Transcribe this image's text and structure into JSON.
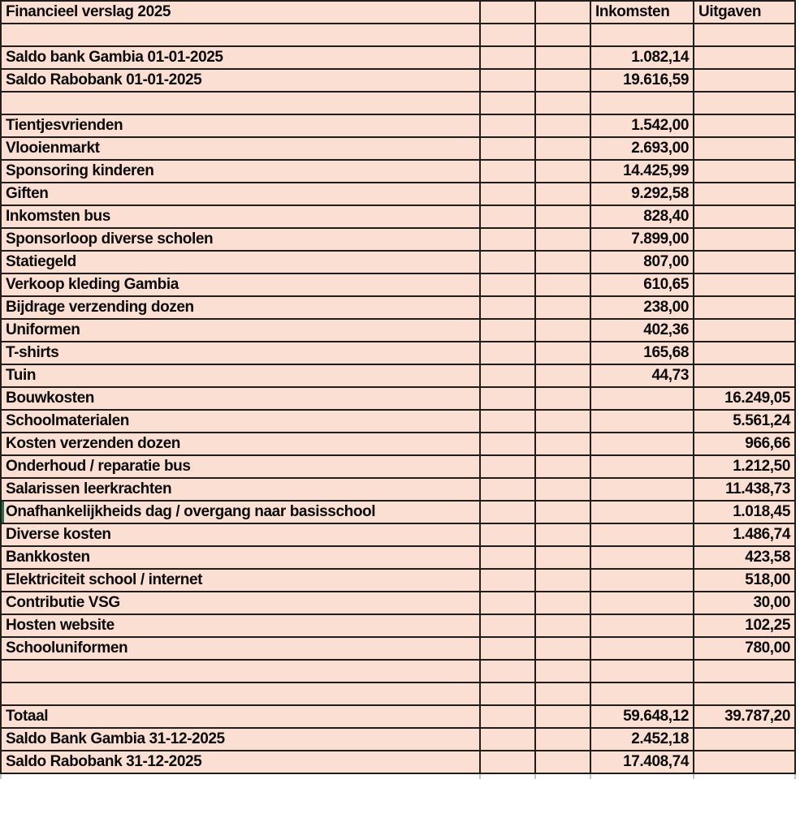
{
  "colors": {
    "cell_fill": "#fcdfd3",
    "grid_line": "#211d1c",
    "selection_green": "#217346",
    "text": "#0b0a0a"
  },
  "table": {
    "title": "Financieel verslag 2025",
    "columns": {
      "inkomsten": "Inkomsten",
      "uitgaven": "Uitgaven"
    },
    "rows": [
      {
        "label": ""
      },
      {
        "label": "Saldo bank Gambia 01-01-2025",
        "inkomsten": "1.082,14"
      },
      {
        "label": "Saldo Rabobank 01-01-2025",
        "inkomsten": "19.616,59"
      },
      {
        "label": ""
      },
      {
        "label": "Tientjesvrienden",
        "inkomsten": "1.542,00"
      },
      {
        "label": "Vlooienmarkt",
        "inkomsten": "2.693,00"
      },
      {
        "label": "Sponsoring kinderen",
        "inkomsten": "14.425,99"
      },
      {
        "label": "Giften",
        "inkomsten": "9.292,58"
      },
      {
        "label": "Inkomsten bus",
        "inkomsten": "828,40"
      },
      {
        "label": "Sponsorloop diverse scholen",
        "inkomsten": "7.899,00"
      },
      {
        "label": "Statiegeld",
        "inkomsten": "807,00"
      },
      {
        "label": "Verkoop kleding Gambia",
        "inkomsten": "610,65"
      },
      {
        "label": "Bijdrage verzending dozen",
        "inkomsten": "238,00"
      },
      {
        "label": "Uniformen",
        "inkomsten": "402,36"
      },
      {
        "label": "T-shirts",
        "inkomsten": "165,68"
      },
      {
        "label": "Tuin",
        "inkomsten": "44,73"
      },
      {
        "label": "Bouwkosten",
        "uitgaven": "16.249,05"
      },
      {
        "label": "Schoolmaterialen",
        "uitgaven": "5.561,24"
      },
      {
        "label": "Kosten verzenden dozen",
        "uitgaven": "966,66"
      },
      {
        "label": "Onderhoud / reparatie bus",
        "uitgaven": "1.212,50"
      },
      {
        "label": "Salarissen leerkrachten",
        "uitgaven": "11.438,73"
      },
      {
        "label": "Onafhankelijkheids dag / overgang naar basisschool",
        "uitgaven": "1.018,45",
        "selected": true
      },
      {
        "label": "Diverse kosten",
        "uitgaven": "1.486,74"
      },
      {
        "label": "Bankkosten",
        "uitgaven": "423,58"
      },
      {
        "label": "Elektriciteit school / internet",
        "uitgaven": "518,00"
      },
      {
        "label": "Contributie VSG",
        "uitgaven": "30,00"
      },
      {
        "label": "Hosten website",
        "uitgaven": "102,25"
      },
      {
        "label": "Schooluniformen",
        "uitgaven": "780,00"
      },
      {
        "label": ""
      },
      {
        "label": ""
      },
      {
        "label": "Totaal",
        "inkomsten": "59.648,12",
        "uitgaven": "39.787,20"
      },
      {
        "label": "Saldo Bank Gambia 31-12-2025",
        "inkomsten": "2.452,18"
      },
      {
        "label": "Saldo Rabobank 31-12-2025",
        "inkomsten": "17.408,74"
      }
    ]
  }
}
